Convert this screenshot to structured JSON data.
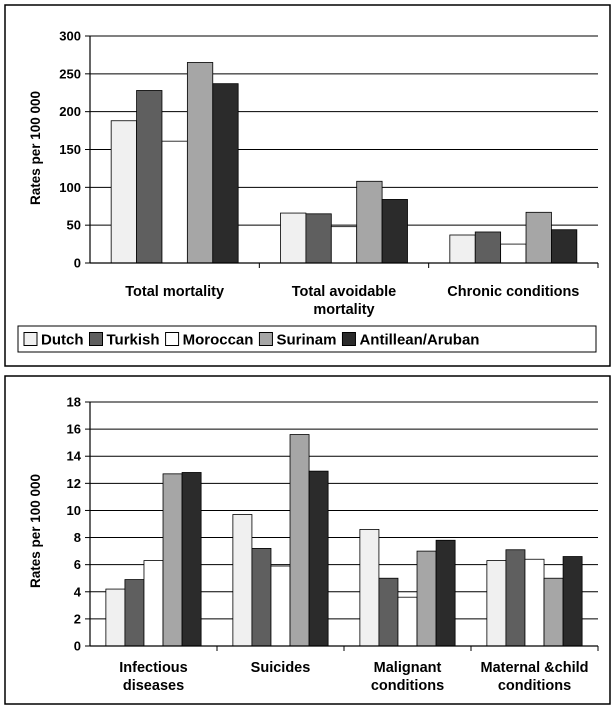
{
  "chart_data": [
    {
      "type": "bar",
      "ylabel": "Rates per 100 000",
      "ylim": [
        0,
        300
      ],
      "yticks": [
        0,
        50,
        100,
        150,
        200,
        250,
        300
      ],
      "grid": true,
      "categories": [
        [
          "Total mortality"
        ],
        [
          "Total avoidable",
          "mortality"
        ],
        [
          "Chronic conditions"
        ]
      ],
      "series": [
        {
          "name": "Dutch",
          "color": "#f0f0f0",
          "values": [
            188,
            66,
            37
          ]
        },
        {
          "name": "Turkish",
          "color": "#5f5f5f",
          "values": [
            228,
            65,
            41
          ]
        },
        {
          "name": "Moroccan",
          "color": "#ffffff",
          "values": [
            161,
            48,
            25
          ]
        },
        {
          "name": "Surinam",
          "color": "#a6a6a6",
          "values": [
            265,
            108,
            67
          ]
        },
        {
          "name": "Antillean/Aruban",
          "color": "#2b2b2b",
          "values": [
            237,
            84,
            44
          ]
        }
      ],
      "legend": "bottom"
    },
    {
      "type": "bar",
      "ylabel": "Rates per 100 000",
      "ylim": [
        0,
        18
      ],
      "yticks": [
        0,
        2,
        4,
        6,
        8,
        10,
        12,
        14,
        16,
        18
      ],
      "grid": true,
      "categories": [
        [
          "Infectious",
          "diseases"
        ],
        [
          "Suicides"
        ],
        [
          "Malignant",
          "conditions"
        ],
        [
          "Maternal &child",
          "conditions"
        ]
      ],
      "series": [
        {
          "name": "Dutch",
          "color": "#f0f0f0",
          "values": [
            4.2,
            9.7,
            8.6,
            6.3
          ]
        },
        {
          "name": "Turkish",
          "color": "#5f5f5f",
          "values": [
            4.9,
            7.2,
            5.0,
            7.1
          ]
        },
        {
          "name": "Moroccan",
          "color": "#ffffff",
          "values": [
            6.3,
            5.9,
            3.6,
            6.4
          ]
        },
        {
          "name": "Surinam",
          "color": "#a6a6a6",
          "values": [
            12.7,
            15.6,
            7.0,
            5.0
          ]
        },
        {
          "name": "Antillean/Aruban",
          "color": "#2b2b2b",
          "values": [
            12.8,
            12.9,
            7.8,
            6.6
          ]
        }
      ]
    }
  ]
}
